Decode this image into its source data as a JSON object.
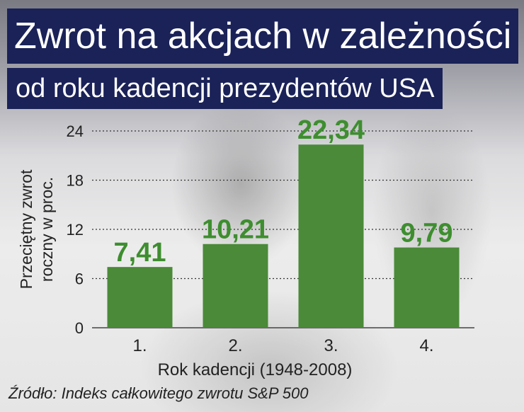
{
  "header": {
    "title_line1": "Zwrot na akcjach w zależności",
    "title_line2": "od roku kadencji prezydentów USA"
  },
  "footer": {
    "source": "Źródło: Indeks całkowitego zwrotu S&P 500"
  },
  "colors": {
    "bar": "#4a8a38",
    "value_label": "#3e8e2f",
    "title_bg": "#1a2258",
    "axis_text": "#222222"
  },
  "chart_data": {
    "type": "bar",
    "categories": [
      "1.",
      "2.",
      "3.",
      "4."
    ],
    "values": [
      7.41,
      10.21,
      22.34,
      9.79
    ],
    "value_labels": [
      "7,41",
      "10,21",
      "22,34",
      "9,79"
    ],
    "title": "Zwrot na akcjach w zależności od roku kadencji prezydentów USA",
    "xlabel": "Rok kadencji (1948-2008)",
    "ylabel_lines": [
      "Przeciętny zwrot",
      "roczny w proc."
    ],
    "ylim": [
      0,
      24
    ],
    "yticks": [
      0,
      6,
      12,
      18,
      24
    ],
    "grid": "dotted horizontal"
  }
}
